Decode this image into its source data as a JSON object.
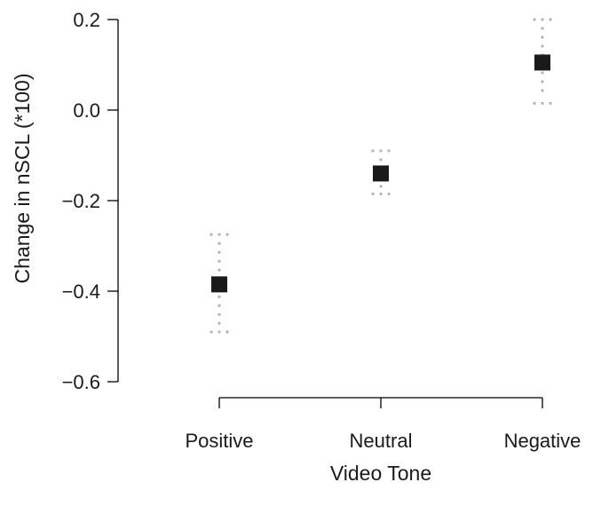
{
  "chart_data": {
    "type": "scatter",
    "title": "",
    "xlabel": "Video Tone",
    "ylabel": "Change in nSCL (*100)",
    "categories": [
      "Positive",
      "Neutral",
      "Negative"
    ],
    "values": [
      -0.385,
      -0.14,
      0.105
    ],
    "error_low": [
      -0.49,
      -0.185,
      0.015
    ],
    "error_high": [
      -0.275,
      -0.09,
      0.2
    ],
    "ylim": [
      -0.6,
      0.2
    ],
    "yticks": [
      "0.2",
      "0.0",
      "−0.2",
      "−0.4",
      "−0.6"
    ],
    "ytick_values": [
      0.2,
      0.0,
      -0.2,
      -0.4,
      -0.6
    ],
    "grid": false,
    "marker": "filled-square",
    "error_style": "dotted"
  },
  "colors": {
    "marker": "#1a1a1a",
    "error_bar": "#b3b3b3",
    "axis": "#000000"
  }
}
